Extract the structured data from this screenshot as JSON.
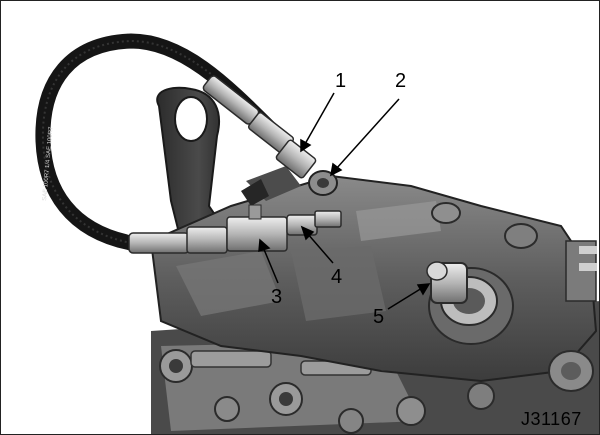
{
  "figure": {
    "callouts": [
      "1",
      "2",
      "3",
      "4",
      "5"
    ],
    "figure_id": "J31167",
    "hose_print": "SAE 100R7 1/4 SAE 100R7"
  },
  "colors": {
    "background": "#ffffff",
    "engine_dark": "#3a3a3a",
    "engine_mid": "#6e6e6e",
    "engine_light": "#a8a8a8",
    "hose": "#151515",
    "fitting": "#c8c8c8"
  }
}
